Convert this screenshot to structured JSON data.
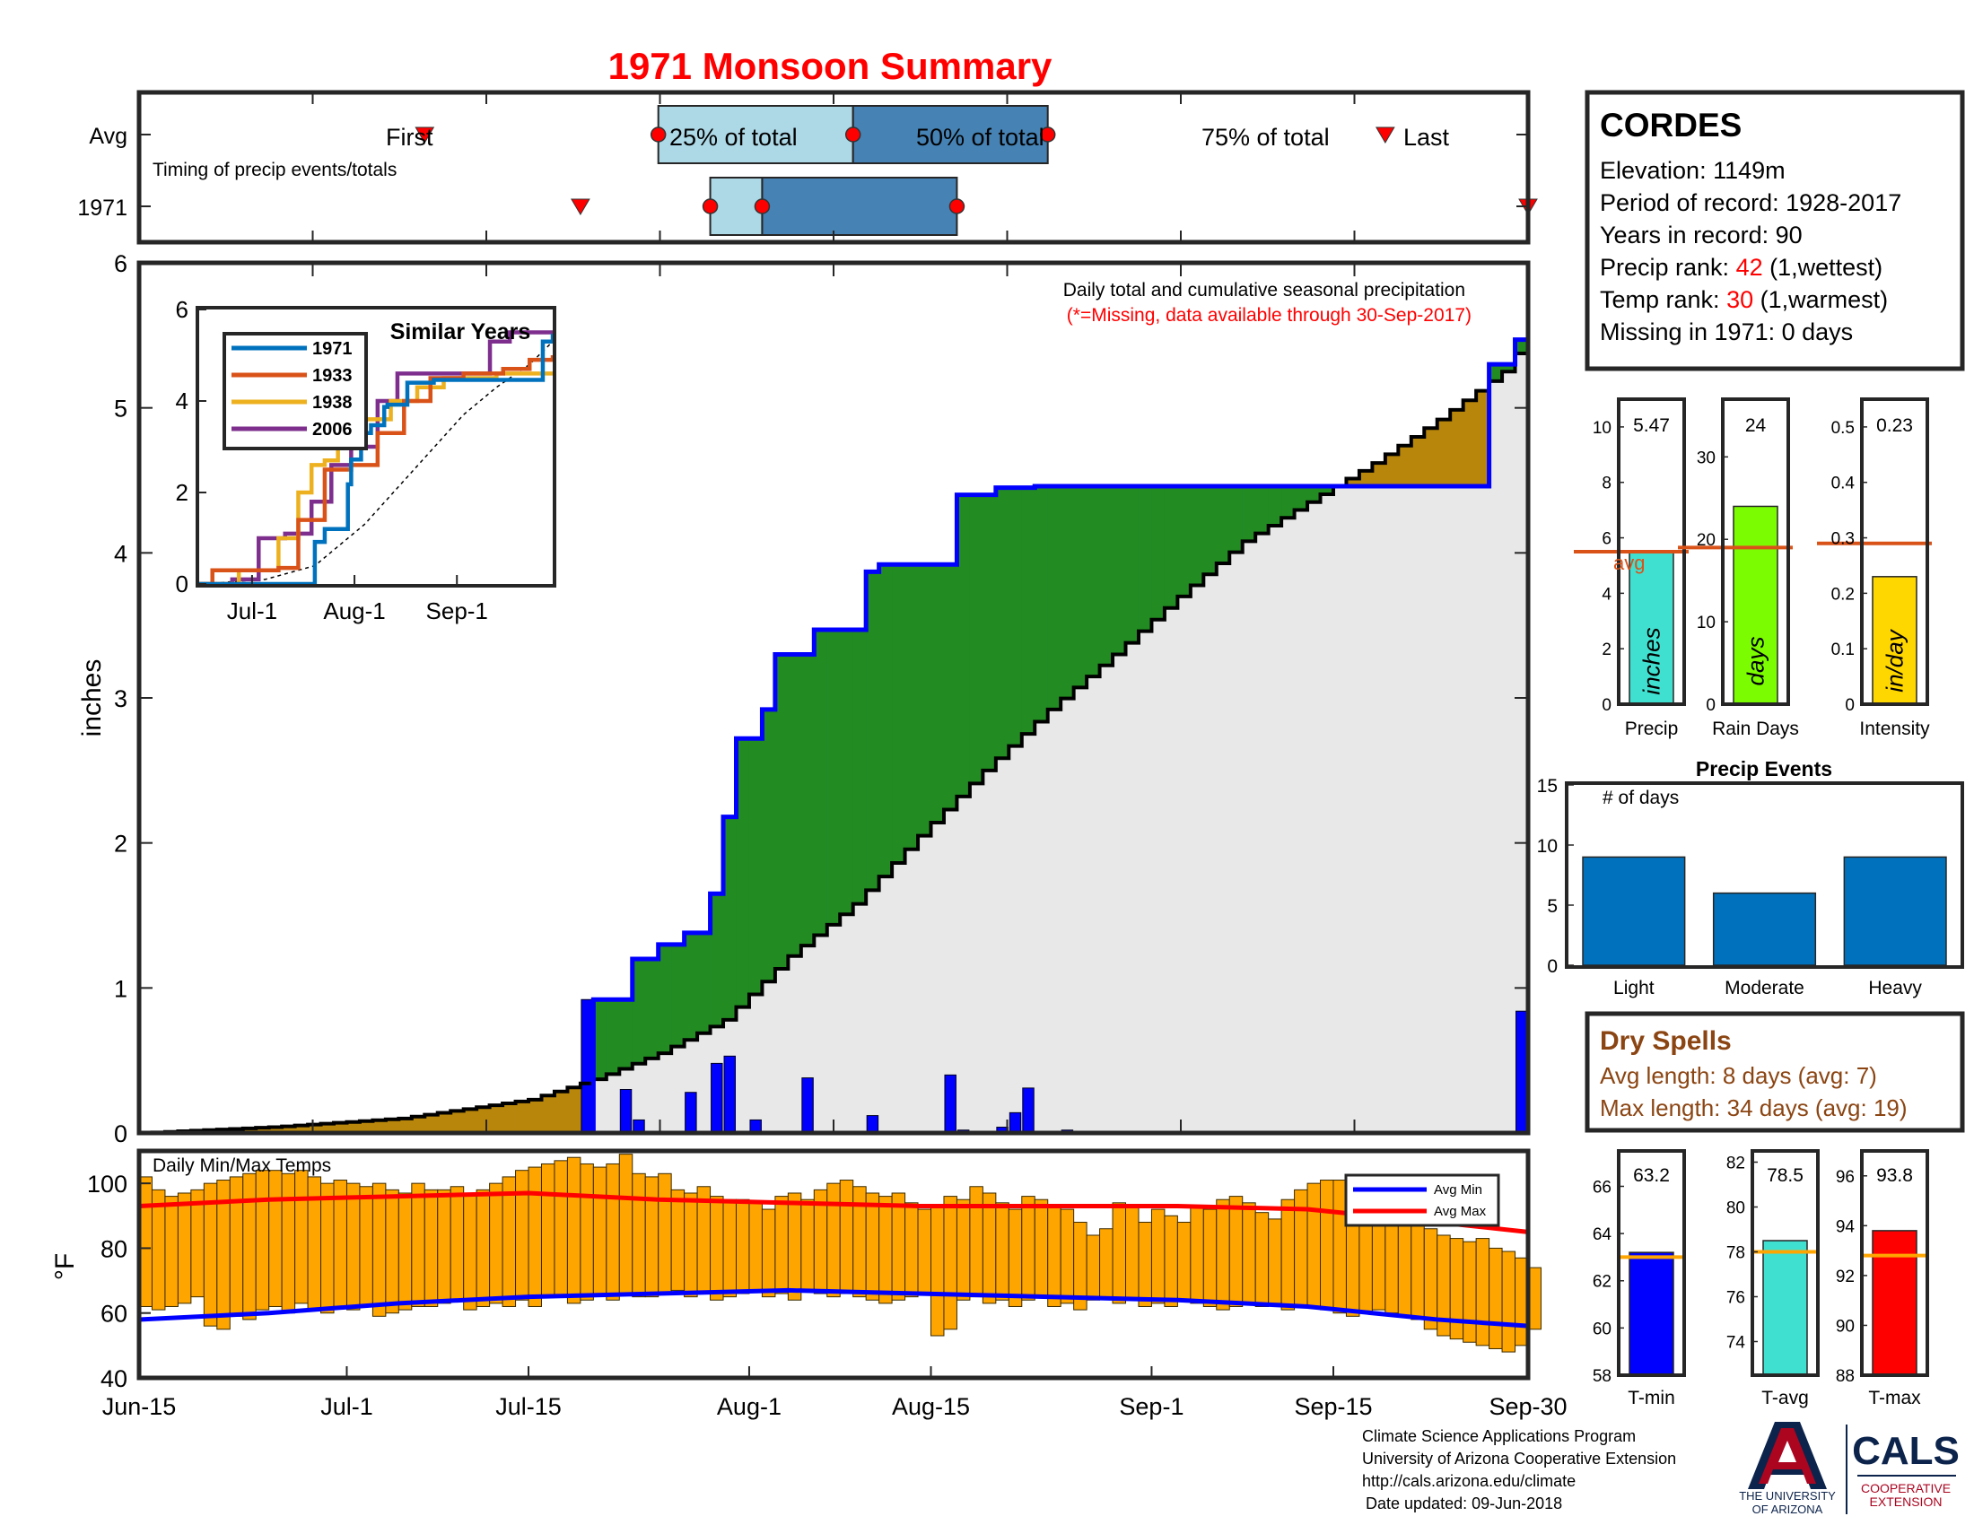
{
  "title": "1971 Monsoon Summary",
  "timing": {
    "row_labels": [
      "Avg",
      "1971"
    ],
    "caption": "Timing of precip events/totals",
    "avg": {
      "first": "Jul-7",
      "q25": "Jul-25",
      "q50": "Aug-9",
      "q75": "Aug-24",
      "last": "Sep-19"
    },
    "year": {
      "first": "Jul-19",
      "q25": "Jul-29",
      "q50": "Aug-2",
      "q75": "Aug-17",
      "last": "Sep-30"
    },
    "labels": {
      "first": "First",
      "q25": "25% of total",
      "q50": "50% of total",
      "q75": "75% of total",
      "last": "Last"
    },
    "colors": {
      "q25_box": "#add8e6",
      "q50_box": "#4682b4",
      "marker": "#ff0000"
    }
  },
  "station": {
    "name": "CORDES",
    "elevation": "Elevation: 1149m",
    "period": "Period of record: 1928-2017",
    "years": "Years in record: 90",
    "precip_rank_prefix": "Precip rank: ",
    "precip_rank_value": "42",
    "precip_rank_suffix": " (1,wettest)",
    "temp_rank_prefix": "Temp rank: ",
    "temp_rank_value": "30",
    "temp_rank_suffix": " (1,warmest)",
    "missing": "Missing in 1971: 0 days"
  },
  "main_chart": {
    "note": "Daily total and cumulative seasonal precipitation",
    "note_missing": "(*=Missing, data available through 30-Sep-2017)",
    "ylabel": "inches",
    "ylim": [
      0,
      6
    ],
    "yticks": [
      "0",
      "1",
      "2",
      "3",
      "4",
      "5",
      "6"
    ],
    "xticks": [
      "Jun-15",
      "Jul-1",
      "Jul-15",
      "Aug-1",
      "Aug-15",
      "Sep-1",
      "Sep-15",
      "Sep-30"
    ],
    "colors": {
      "obs_line": "#0000ff",
      "avg_line": "#000000",
      "wetter": "#228b22",
      "drier": "#b8860b",
      "fill": "#e8e8e8",
      "daily_bars": "#0000ff"
    }
  },
  "chart_data": [
    {
      "type": "line",
      "name": "cumulative",
      "x_unit": "day of season (Jun-15 = 0)",
      "avg_cumulative": {
        "x": [
          0,
          10,
          20,
          30,
          35,
          40,
          45,
          50,
          55,
          60,
          65,
          70,
          75,
          80,
          85,
          90,
          95,
          100,
          105,
          107
        ],
        "y": [
          0,
          0.04,
          0.1,
          0.23,
          0.37,
          0.55,
          0.78,
          1.22,
          1.58,
          2.05,
          2.5,
          2.92,
          3.3,
          3.7,
          4.08,
          4.35,
          4.62,
          4.92,
          5.25,
          5.5
        ]
      },
      "observed_cumulative": {
        "x": [
          0,
          34,
          35,
          37,
          38,
          40,
          41,
          42,
          43,
          44,
          45,
          46,
          47,
          48,
          49,
          51,
          52,
          55,
          56,
          57,
          62,
          63,
          66,
          67,
          68,
          69,
          70,
          71,
          103,
          104,
          106,
          107
        ],
        "y": [
          0,
          0,
          0.92,
          0.92,
          1.2,
          1.3,
          1.3,
          1.38,
          1.38,
          1.65,
          2.18,
          2.72,
          2.72,
          2.92,
          3.3,
          3.3,
          3.47,
          3.47,
          3.87,
          3.92,
          3.92,
          4.4,
          4.45,
          4.45,
          4.45,
          4.46,
          4.46,
          4.46,
          4.46,
          5.3,
          5.47,
          5.47
        ]
      },
      "daily": {
        "x": [
          34,
          37,
          38,
          42,
          44,
          45,
          47,
          51,
          56,
          62,
          63,
          66,
          67,
          68,
          71,
          106
        ],
        "y": [
          0.92,
          0.3,
          0.09,
          0.28,
          0.48,
          0.53,
          0.09,
          0.38,
          0.12,
          0.4,
          0.02,
          0.04,
          0.14,
          0.31,
          0.02,
          0.84
        ]
      },
      "xlim": [
        0,
        107
      ],
      "ylim": [
        0,
        6
      ]
    },
    {
      "type": "line",
      "name": "similar_years",
      "title": "Similar Years",
      "ylim": [
        0,
        6
      ],
      "yticks": [
        "0",
        "2",
        "4",
        "6"
      ],
      "xticks": [
        "Jul-1",
        "Aug-1",
        "Sep-1"
      ],
      "series": [
        {
          "name": "1971",
          "color": "#0072bd",
          "x": [
            0,
            34,
            35,
            38,
            45,
            46,
            49,
            52,
            56,
            57,
            63,
            71,
            103,
            104,
            107
          ],
          "y": [
            0,
            0,
            0.92,
            1.2,
            2.18,
            2.72,
            3.3,
            3.47,
            3.87,
            3.92,
            4.4,
            4.46,
            4.46,
            5.3,
            5.47
          ]
        },
        {
          "name": "1933",
          "color": "#d95319",
          "x": [
            0,
            4,
            24,
            30,
            38,
            46,
            54,
            62,
            70,
            80,
            92,
            100,
            107
          ],
          "y": [
            0,
            0.3,
            0.35,
            1.4,
            2.5,
            2.6,
            3.3,
            4.0,
            4.5,
            4.6,
            4.7,
            4.9,
            5.0
          ]
        },
        {
          "name": "1938",
          "color": "#edb120",
          "x": [
            0,
            12,
            24,
            30,
            34,
            38,
            42,
            50,
            58,
            66,
            74,
            90,
            107
          ],
          "y": [
            0,
            0.3,
            1.0,
            2.0,
            2.6,
            2.7,
            3.1,
            3.6,
            4.0,
            4.3,
            4.5,
            4.6,
            4.6
          ]
        },
        {
          "name": "2006",
          "color": "#7e2f8e",
          "x": [
            0,
            10,
            18,
            26,
            34,
            40,
            46,
            54,
            60,
            64,
            70,
            80,
            88,
            94,
            100,
            107
          ],
          "y": [
            0,
            0.1,
            1.0,
            1.1,
            1.8,
            2.6,
            3.0,
            4.0,
            4.6,
            4.6,
            4.6,
            4.6,
            5.3,
            5.5,
            5.5,
            5.5
          ]
        }
      ],
      "climatology_dashed": {
        "x": [
          0,
          20,
          35,
          50,
          60,
          70,
          80,
          90,
          100,
          107
        ],
        "y": [
          0,
          0.1,
          0.4,
          1.3,
          2.1,
          2.9,
          3.7,
          4.3,
          4.8,
          5.3
        ]
      }
    },
    {
      "type": "bar",
      "name": "season_totals",
      "panels": [
        {
          "label": "Precip",
          "value": 5.47,
          "value_label": "5.47",
          "avg": 5.5,
          "ylim": [
            0,
            11
          ],
          "yticks": [
            0,
            2,
            4,
            6,
            8,
            10
          ],
          "unit": "inches",
          "color": "#40e0d0",
          "avg_label": "avg"
        },
        {
          "label": "Rain Days",
          "value": 24,
          "value_label": "24",
          "avg": 19,
          "ylim": [
            0,
            37
          ],
          "yticks": [
            0,
            10,
            20,
            30
          ],
          "unit": "days",
          "color": "#7cfc00"
        },
        {
          "label": "Intensity",
          "value": 0.23,
          "value_label": "0.23",
          "avg": 0.29,
          "ylim": [
            0,
            0.55
          ],
          "yticks": [
            0,
            0.1,
            0.2,
            0.3,
            0.4,
            0.5
          ],
          "unit": "in/day",
          "color": "#ffd700"
        }
      ],
      "avg_color": "#d95319"
    },
    {
      "type": "bar",
      "name": "precip_events",
      "title": "Precip Events",
      "ylabel_inside": "# of days",
      "categories": [
        "Light",
        "Moderate",
        "Heavy"
      ],
      "values": [
        9,
        6,
        9
      ],
      "ylim": [
        0,
        15
      ],
      "yticks": [
        0,
        5,
        10,
        15
      ],
      "color": "#0072bd"
    },
    {
      "type": "bar",
      "name": "daily_temps",
      "title": "Daily Min/Max Temps",
      "ylabel": "°F",
      "ylim": [
        40,
        110
      ],
      "yticks": [
        "40",
        "60",
        "80",
        "100"
      ],
      "x_start_day": 0,
      "tmax": [
        102,
        98,
        96,
        97,
        98,
        100,
        101,
        102,
        103,
        104,
        104,
        103,
        104,
        102,
        100,
        101,
        100,
        99,
        100,
        98,
        97,
        100,
        98,
        98,
        99,
        97,
        98,
        100,
        102,
        104,
        105,
        106,
        107,
        108,
        106,
        105,
        106,
        109,
        103,
        102,
        103,
        98,
        97,
        99,
        96,
        95,
        95,
        94,
        92,
        96,
        97,
        95,
        98,
        100,
        101,
        99,
        97,
        96,
        97,
        94,
        92,
        93,
        96,
        95,
        99,
        97,
        94,
        92,
        96,
        95,
        93,
        92,
        88,
        84,
        86,
        94,
        93,
        88,
        92,
        90,
        88,
        93,
        92,
        95,
        96,
        94,
        91,
        89,
        95,
        98,
        100,
        101,
        101,
        100,
        98,
        95,
        91,
        89,
        88,
        86,
        84,
        83,
        82,
        83,
        80,
        79,
        77,
        74
      ],
      "tmin": [
        62,
        61,
        62,
        63,
        65,
        56,
        55,
        59,
        58,
        61,
        62,
        60,
        63,
        61,
        60,
        62,
        61,
        62,
        59,
        60,
        61,
        62,
        62,
        63,
        64,
        61,
        62,
        63,
        62,
        64,
        62,
        65,
        65,
        63,
        64,
        66,
        64,
        66,
        65,
        65,
        66,
        67,
        65,
        66,
        64,
        65,
        66,
        67,
        65,
        66,
        64,
        67,
        66,
        65,
        66,
        65,
        64,
        63,
        64,
        65,
        66,
        53,
        55,
        64,
        65,
        63,
        64,
        62,
        64,
        65,
        62,
        63,
        61,
        64,
        65,
        63,
        64,
        62,
        63,
        62,
        64,
        63,
        62,
        61,
        62,
        63,
        62,
        63,
        61,
        62,
        62,
        61,
        60,
        59,
        60,
        61,
        60,
        59,
        58,
        55,
        53,
        52,
        51,
        50,
        49,
        48,
        50,
        55
      ],
      "avg_min": {
        "x": [
          0,
          10,
          20,
          30,
          40,
          50,
          60,
          70,
          80,
          90,
          100,
          107
        ],
        "y": [
          58,
          60,
          63,
          65,
          66,
          67,
          66,
          65,
          64,
          62,
          58,
          56
        ]
      },
      "avg_max": {
        "x": [
          0,
          10,
          20,
          30,
          40,
          50,
          60,
          70,
          80,
          90,
          100,
          107
        ],
        "y": [
          93,
          95,
          96,
          97,
          95,
          94,
          93,
          93,
          93,
          92,
          88,
          85
        ]
      },
      "legend": [
        "Avg Min",
        "Avg Max"
      ],
      "colors": {
        "bars": "#ffa500",
        "avg_min": "#0000ff",
        "avg_max": "#ff0000"
      }
    },
    {
      "type": "bar",
      "name": "season_temps",
      "panels": [
        {
          "label": "T-min",
          "value": 63.2,
          "value_label": "63.2",
          "avg": 63.0,
          "ylim": [
            58,
            67.5
          ],
          "yticks": [
            58,
            60,
            62,
            64,
            66
          ],
          "color": "#0000ff"
        },
        {
          "label": "T-avg",
          "value": 78.5,
          "value_label": "78.5",
          "avg": 78.0,
          "ylim": [
            72.5,
            82.5
          ],
          "yticks": [
            74,
            76,
            78,
            80,
            82
          ],
          "color": "#40e0d0"
        },
        {
          "label": "T-max",
          "value": 93.8,
          "value_label": "93.8",
          "avg": 92.8,
          "ylim": [
            88,
            97
          ],
          "yticks": [
            88,
            90,
            92,
            94,
            96
          ],
          "color": "#ff0000"
        }
      ],
      "avg_color": "#ffa500"
    }
  ],
  "dry_spells": {
    "title": "Dry Spells",
    "avg_length": "Avg length: 8 days (avg: 7)",
    "max_length": "Max length: 34 days (avg: 19)",
    "color": "#8b4513"
  },
  "footer": {
    "line1": "Climate Science Applications Program",
    "line2": "University of Arizona Cooperative Extension",
    "line3": "http://cals.arizona.edu/climate",
    "line4": "Date updated: 09-Jun-2018"
  },
  "logos": {
    "ua_line1": "THE UNIVERSITY",
    "ua_line2": "OF ARIZONA",
    "cals": "CALS",
    "cals_sub1": "COOPERATIVE",
    "cals_sub2": "EXTENSION",
    "ua_color": "#ab0520",
    "navy": "#0c234b"
  }
}
